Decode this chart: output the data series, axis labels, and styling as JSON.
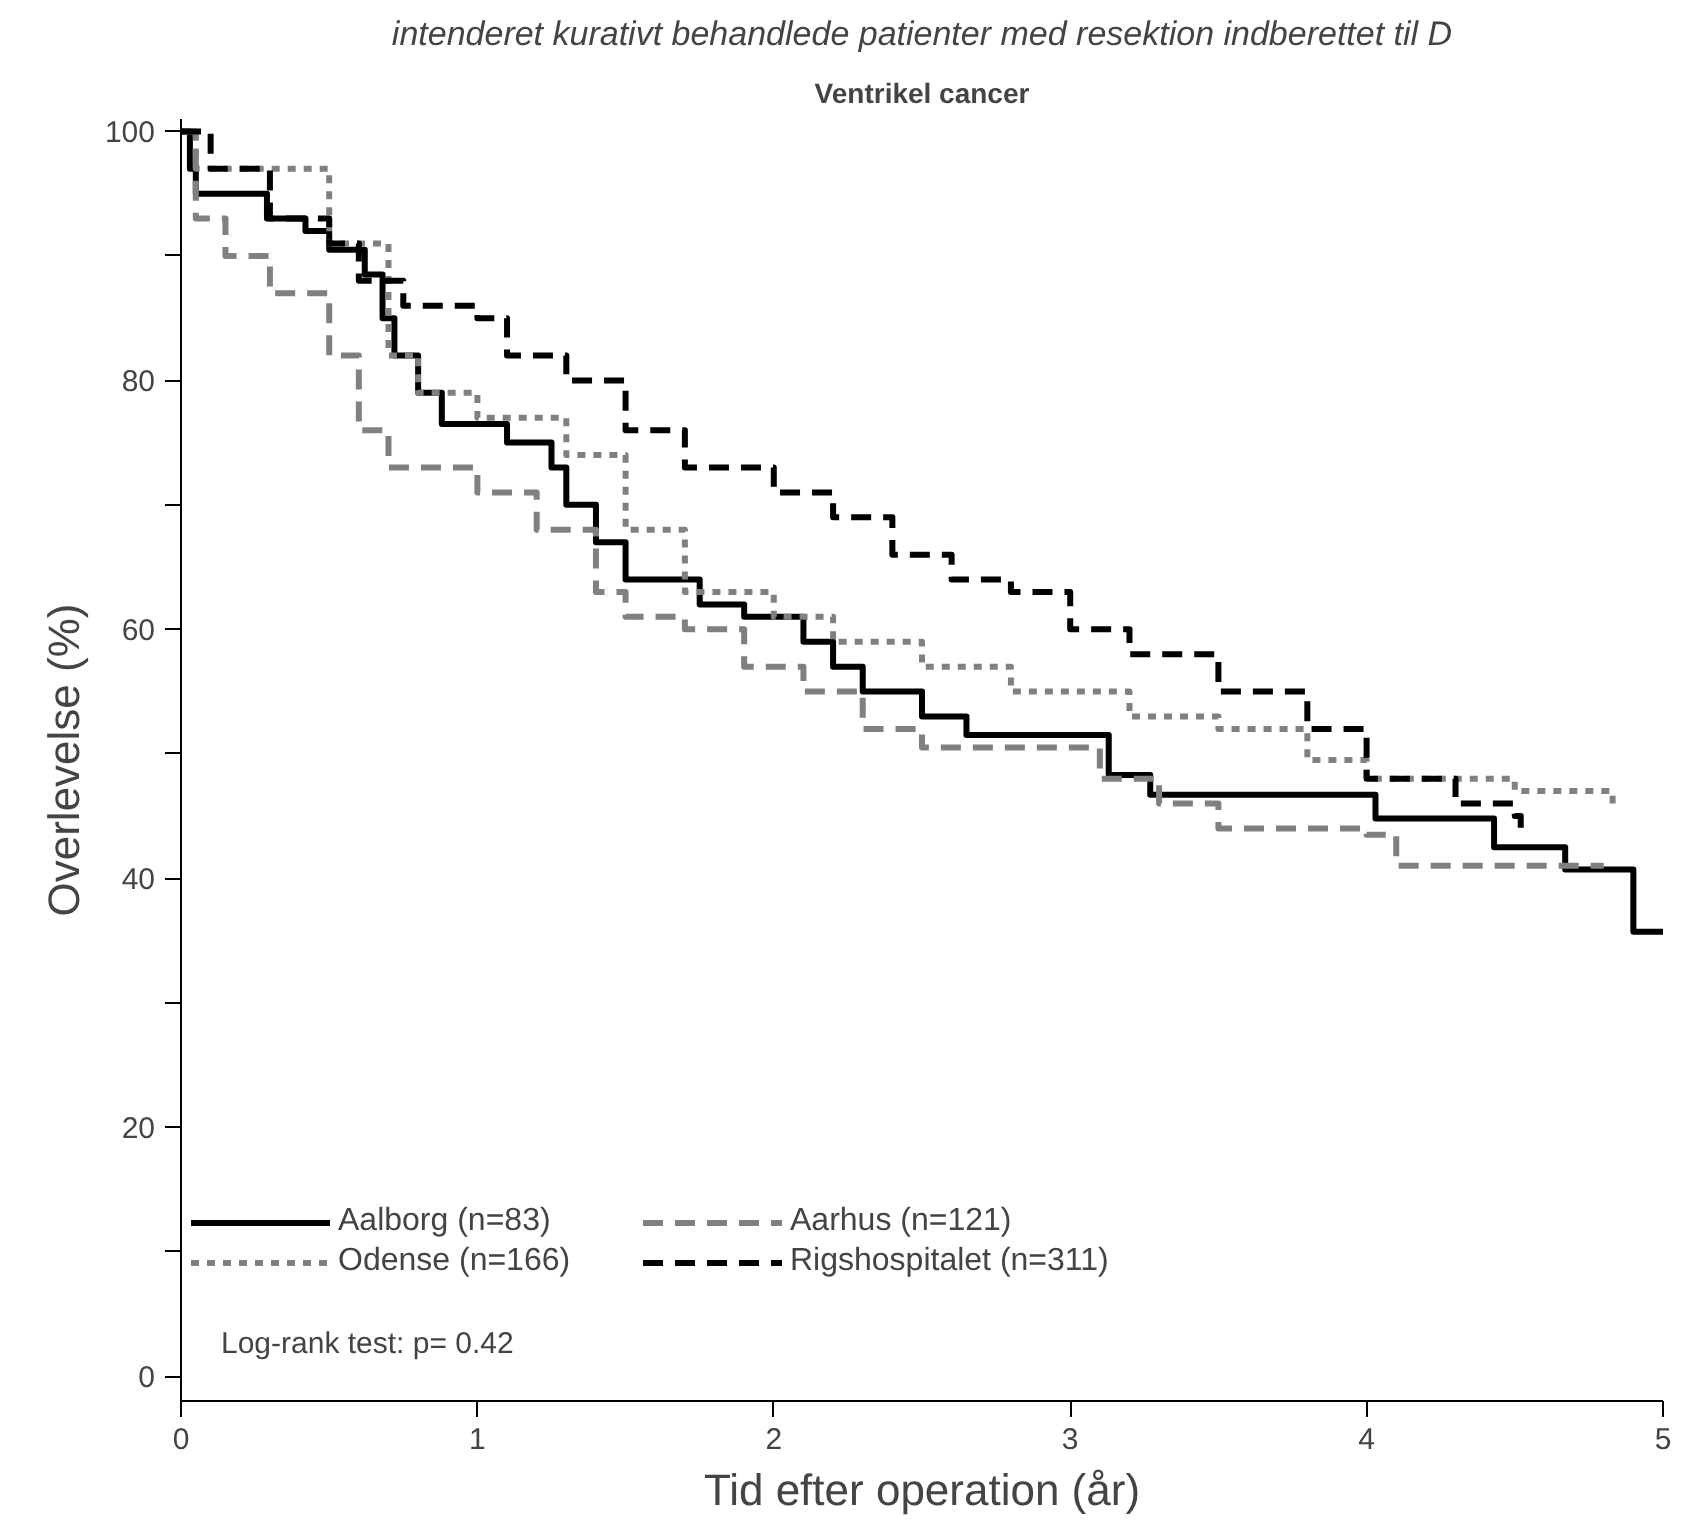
{
  "chart_data": {
    "type": "step",
    "title": "intenderet kurativt behandlede patienter med resektion indberettet til D",
    "subtitle": "Ventrikel cancer",
    "xlabel": "Tid efter operation (år)",
    "ylabel": "Overlevelse (%)",
    "xlim": [
      0,
      5
    ],
    "ylim": [
      -2,
      101
    ],
    "xticks": [
      0,
      1,
      2,
      3,
      4,
      5
    ],
    "yticks": [
      0,
      {
        "value": 10,
        "label": null
      },
      20,
      {
        "value": 30,
        "label": null
      },
      40,
      {
        "value": 50,
        "label": null
      },
      60,
      {
        "value": 70,
        "label": null
      },
      80,
      {
        "value": 90,
        "label": null
      },
      100
    ],
    "grid": false,
    "legend": "bottom left",
    "marker": "none",
    "annotations": [
      "Log-rank test: p= 0.42"
    ],
    "series": [
      {
        "name": "Aalborg (n=83)",
        "color": "#000000",
        "line_style": "solid",
        "x": [
          0,
          0.03,
          0.05,
          0.29,
          0.42,
          0.5,
          0.62,
          0.68,
          0.72,
          0.8,
          0.88,
          1.1,
          1.25,
          1.3,
          1.4,
          1.5,
          1.75,
          1.9,
          2.1,
          2.2,
          2.3,
          2.5,
          2.65,
          3.13,
          3.27,
          4.03,
          4.43,
          4.67,
          4.9,
          5.0
        ],
        "values": [
          100,
          97,
          95,
          93,
          92,
          90.5,
          88.5,
          85,
          82,
          79,
          76.5,
          75,
          73,
          70,
          67,
          64,
          62,
          61,
          59,
          57,
          55,
          53,
          51.5,
          48.3,
          46.7,
          44.8,
          42.5,
          40.7,
          35.7,
          35.7
        ]
      },
      {
        "name": "Odense (n=166)",
        "color": "#808080",
        "line_style": "dotted",
        "x": [
          0,
          0.05,
          0.3,
          0.5,
          0.7,
          0.8,
          1.0,
          1.3,
          1.5,
          1.7,
          2.0,
          2.2,
          2.5,
          2.8,
          3.2,
          3.5,
          3.8,
          4.0,
          4.5,
          4.83
        ],
        "values": [
          100,
          97,
          97,
          91,
          82,
          79,
          77,
          74,
          68,
          63,
          61,
          59,
          57,
          55,
          53,
          52,
          49.5,
          48,
          47,
          46
        ]
      },
      {
        "name": "Aarhus (n=121)",
        "color": "#808080",
        "line_style": "dashed",
        "x": [
          0,
          0.05,
          0.15,
          0.3,
          0.5,
          0.6,
          0.7,
          1.0,
          1.2,
          1.4,
          1.5,
          1.7,
          1.9,
          2.1,
          2.3,
          2.5,
          3.0,
          3.1,
          3.3,
          3.5,
          4.0,
          4.1,
          4.8
        ],
        "values": [
          100,
          93,
          90,
          87,
          82,
          76,
          73,
          71,
          68,
          63,
          61,
          60,
          57,
          55,
          52,
          50.5,
          50.5,
          48,
          46,
          44,
          43.5,
          41,
          41
        ]
      },
      {
        "name": "Rigshospitalet (n=311)",
        "color": "#000000",
        "line_style": "dashed",
        "x": [
          0,
          0.1,
          0.3,
          0.5,
          0.6,
          0.75,
          1.0,
          1.1,
          1.3,
          1.5,
          1.7,
          2.0,
          2.2,
          2.4,
          2.6,
          2.8,
          3.0,
          3.2,
          3.5,
          3.8,
          4.0,
          4.3,
          4.5,
          4.52
        ],
        "values": [
          100,
          97,
          93,
          91,
          88,
          86,
          85,
          82,
          80,
          76,
          73,
          71,
          69,
          66,
          64,
          63,
          60,
          58,
          55,
          52,
          48,
          46,
          45,
          44
        ]
      }
    ]
  }
}
